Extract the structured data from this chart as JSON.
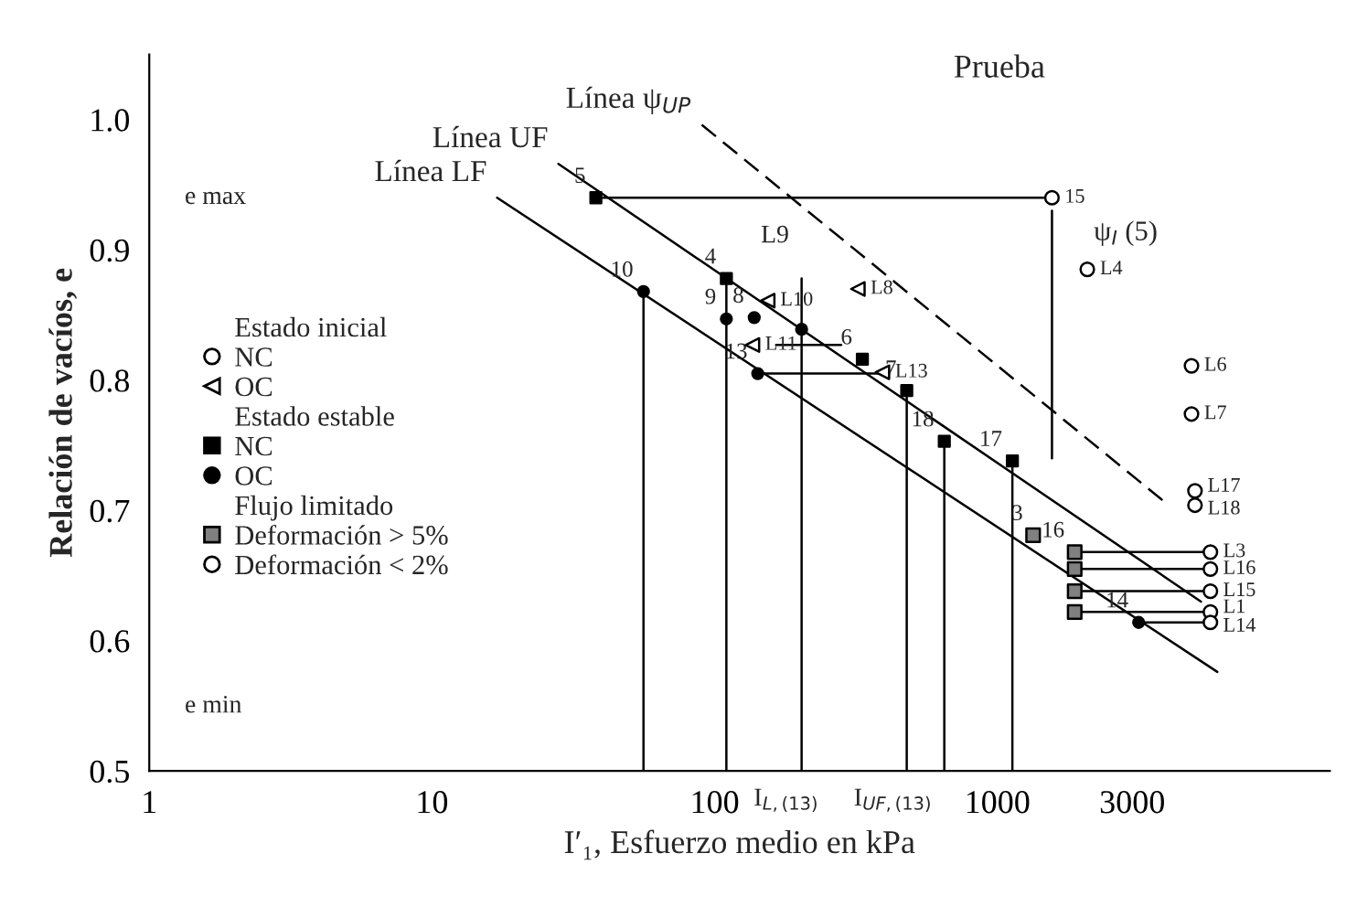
{
  "chart_data": {
    "type": "scatter",
    "xlabel": "I′₁, Esfuerzo medio en kPa",
    "ylabel": "Relación de vacíos, e",
    "log": "x",
    "xlim": [
      1,
      15000
    ],
    "ylim": [
      0.5,
      1.05
    ],
    "xticks": [
      1,
      10,
      100,
      1000,
      3000
    ],
    "yticks": [
      {
        "value": 0.5,
        "label": "0.5"
      },
      {
        "value": 0.6,
        "label": "0.6"
      },
      {
        "value": 0.7,
        "label": "0.7"
      },
      {
        "value": 0.8,
        "label": "0.8"
      },
      {
        "value": 0.9,
        "label": "0.9"
      },
      {
        "value": 1.0,
        "label": "1.0"
      }
    ],
    "grid": false,
    "legend": "left",
    "series": [
      {
        "name": "NC",
        "marker": "circle",
        "color": "#ffffff",
        "x": [
          1560,
          2080,
          4860,
          4860,
          5000,
          5000
        ],
        "values": [
          0.94,
          0.885,
          0.811,
          0.774,
          0.715,
          0.704
        ]
      },
      {
        "name": "OC",
        "marker": "triangle",
        "color": "#ffffff",
        "x": [
          321,
          154,
          136,
          392
        ],
        "values": [
          0.87,
          0.861,
          0.827,
          0.806
        ]
      },
      {
        "name": "NC",
        "marker": "square",
        "color": "#000000",
        "x": [
          38,
          110,
          333,
          478,
          649,
          1130
        ],
        "values": [
          0.94,
          0.878,
          0.816,
          0.792,
          0.753,
          0.738
        ]
      },
      {
        "name": "OC",
        "marker": "circle",
        "color": "#000000",
        "x": [
          56,
          110,
          138,
          203,
          142,
          3160
        ],
        "values": [
          0.868,
          0.847,
          0.848,
          0.839,
          0.805,
          0.614
        ]
      },
      {
        "name": "Deformación > 5%",
        "marker": "square",
        "color": "#808080",
        "x": [
          1338,
          1877,
          1877,
          1877,
          1877
        ],
        "values": [
          0.681,
          0.668,
          0.655,
          0.638,
          0.622
        ]
      },
      {
        "name": "Deformación < 2%",
        "marker": "circle",
        "color": "#ffffff",
        "x": [
          5670,
          5670,
          5670,
          5670,
          5670
        ],
        "values": [
          0.668,
          0.655,
          0.638,
          0.622,
          0.614
        ]
      },
      {
        "name": "Línea LF",
        "type": "line",
        "color": "#000000",
        "line_style": "solid",
        "x": [
          17,
          6000
        ],
        "values": [
          0.94,
          0.576
        ]
      },
      {
        "name": "Línea UF",
        "type": "line",
        "color": "#000000",
        "line_style": "solid",
        "x": [
          28,
          5250
        ],
        "values": [
          0.966,
          0.63
        ]
      },
      {
        "name": "Línea ψ$_{UP}$",
        "type": "line",
        "color": "#000000",
        "line_style": "dashed",
        "x": [
          90,
          3980
        ],
        "values": [
          0.996,
          0.705
        ]
      },
      {
        "type": "line",
        "color": "#000000",
        "line_style": "solid",
        "x": [
          38,
          1560
        ],
        "values": [
          0.94,
          0.94
        ]
      },
      {
        "type": "line",
        "color": "#000000",
        "line_style": "solid",
        "x": [
          1560,
          1560
        ],
        "values": [
          0.93,
          0.74
        ]
      },
      {
        "type": "line",
        "color": "#000000",
        "line_style": "solid",
        "x": [
          142,
          392
        ],
        "values": [
          0.805,
          0.805
        ]
      },
      {
        "type": "line",
        "color": "#000000",
        "line_style": "solid",
        "x": [
          165,
          280
        ],
        "values": [
          0.827,
          0.827
        ]
      },
      {
        "type": "line",
        "color": "#000000",
        "line_style": "solid",
        "x": [
          1877,
          5670
        ],
        "values": [
          0.668,
          0.668
        ]
      },
      {
        "type": "line",
        "color": "#000000",
        "line_style": "solid",
        "x": [
          1877,
          5670
        ],
        "values": [
          0.655,
          0.655
        ]
      },
      {
        "type": "line",
        "color": "#000000",
        "line_style": "solid",
        "x": [
          1877,
          5670
        ],
        "values": [
          0.638,
          0.638
        ]
      },
      {
        "type": "line",
        "color": "#000000",
        "line_style": "solid",
        "x": [
          1877,
          5670
        ],
        "values": [
          0.622,
          0.622
        ]
      },
      {
        "type": "line",
        "color": "#000000",
        "line_style": "solid",
        "x": [
          3160,
          5670
        ],
        "values": [
          0.614,
          0.614
        ]
      },
      {
        "type": "line",
        "color": "#000000",
        "line_style": "solid",
        "x": [
          56,
          56
        ],
        "values": [
          0.868,
          0.5
        ]
      },
      {
        "type": "line",
        "color": "#000000",
        "line_style": "solid",
        "x": [
          110,
          110
        ],
        "values": [
          0.878,
          0.5
        ]
      },
      {
        "type": "line",
        "color": "#000000",
        "line_style": "solid",
        "x": [
          203,
          203
        ],
        "values": [
          0.878,
          0.5
        ]
      },
      {
        "type": "line",
        "color": "#000000",
        "line_style": "solid",
        "x": [
          478,
          478
        ],
        "values": [
          0.792,
          0.5
        ]
      },
      {
        "type": "line",
        "color": "#000000",
        "line_style": "solid",
        "x": [
          649,
          649
        ],
        "values": [
          0.753,
          0.5
        ]
      },
      {
        "type": "line",
        "color": "#000000",
        "line_style": "solid",
        "x": [
          1130,
          1130
        ],
        "values": [
          0.738,
          0.5
        ]
      }
    ],
    "annotations": [
      "Estado inicial",
      "Estado estable",
      "Flujo limitado",
      "Prueba",
      "ψ$_{I}$ (5)",
      "L9",
      "e max",
      "e min",
      "I$_{L,(13)}$",
      "I$_{UF,(13)}$",
      {
        "text": "15",
        "x": 1560,
        "y": 0.94
      },
      {
        "text": "5",
        "x": 38,
        "y": 0.94
      },
      {
        "text": "4",
        "x": 110,
        "y": 0.878
      },
      {
        "text": "10",
        "x": 56,
        "y": 0.868
      },
      {
        "text": "9",
        "x": 110,
        "y": 0.847
      },
      {
        "text": "8",
        "x": 138,
        "y": 0.848
      },
      {
        "text": "6",
        "x": 333,
        "y": 0.816
      },
      {
        "text": "13",
        "x": 142,
        "y": 0.805
      },
      {
        "text": "7",
        "x": 478,
        "y": 0.792
      },
      {
        "text": "18",
        "x": 649,
        "y": 0.753
      },
      {
        "text": "17",
        "x": 1130,
        "y": 0.738
      },
      {
        "text": "3",
        "x": 1338,
        "y": 0.681
      },
      {
        "text": "16",
        "x": 1877,
        "y": 0.668
      },
      {
        "text": "14",
        "x": 3160,
        "y": 0.614
      },
      {
        "text": "L4",
        "x": 2080,
        "y": 0.885
      },
      {
        "text": "L6",
        "x": 4860,
        "y": 0.811
      },
      {
        "text": "L7",
        "x": 4860,
        "y": 0.774
      },
      {
        "text": "L17",
        "x": 5000,
        "y": 0.715
      },
      {
        "text": "L18",
        "x": 5000,
        "y": 0.704
      },
      {
        "text": "L3",
        "x": 5670,
        "y": 0.668
      },
      {
        "text": "L16",
        "x": 5670,
        "y": 0.655
      },
      {
        "text": "L15",
        "x": 5670,
        "y": 0.638
      },
      {
        "text": "L1",
        "x": 5670,
        "y": 0.622
      },
      {
        "text": "L14",
        "x": 5670,
        "y": 0.614
      },
      {
        "text": "L8",
        "x": 321,
        "y": 0.87
      },
      {
        "text": "L10",
        "x": 154,
        "y": 0.861
      },
      {
        "text": "L11",
        "x": 136,
        "y": 0.827
      },
      {
        "text": "L13",
        "x": 392,
        "y": 0.806
      }
    ]
  }
}
